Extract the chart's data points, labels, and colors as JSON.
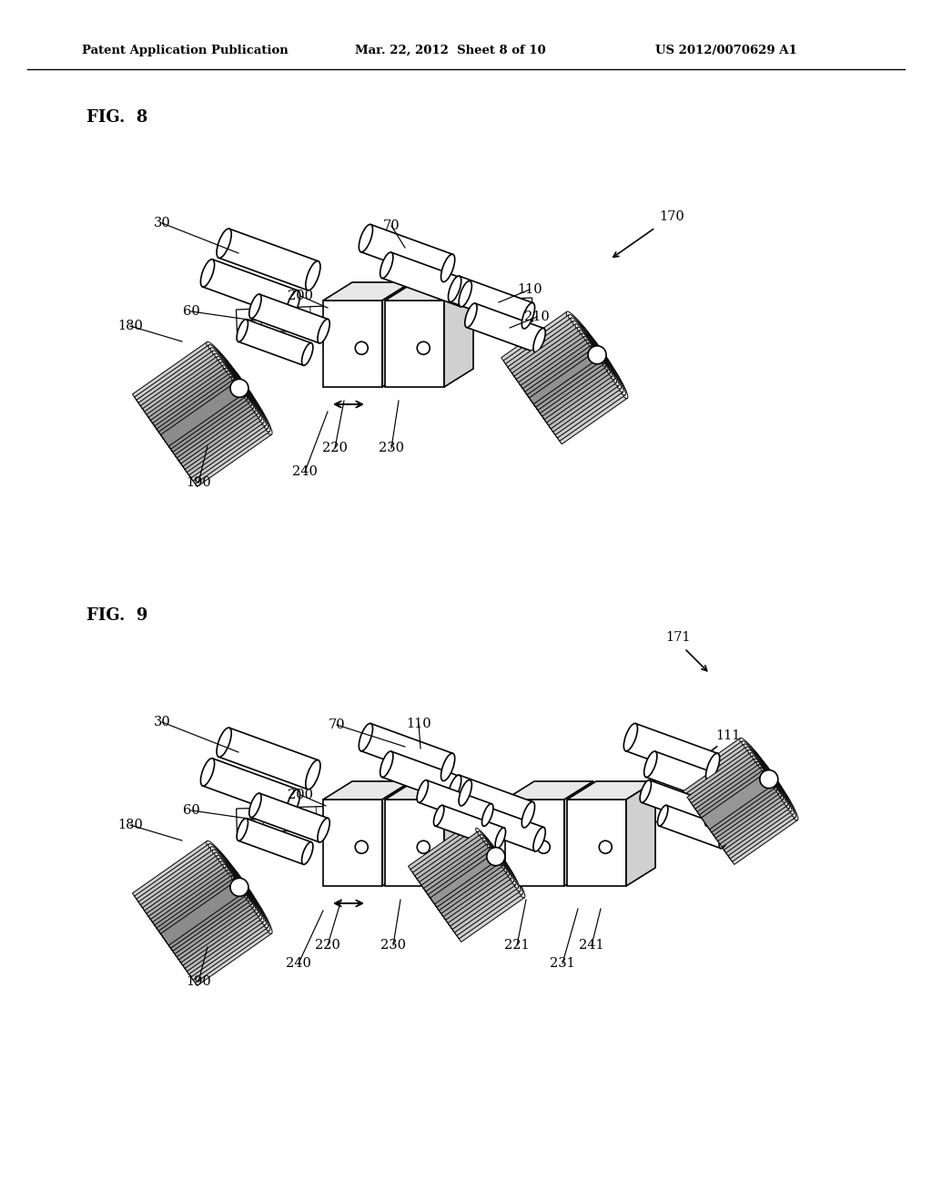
{
  "background_color": "#ffffff",
  "header_text": "Patent Application Publication",
  "header_date": "Mar. 22, 2012  Sheet 8 of 10",
  "header_patent": "US 2012/0070629 A1",
  "fig8_label": "FIG.  8",
  "fig9_label": "FIG.  9",
  "line_color": "#000000",
  "text_color": "#000000"
}
